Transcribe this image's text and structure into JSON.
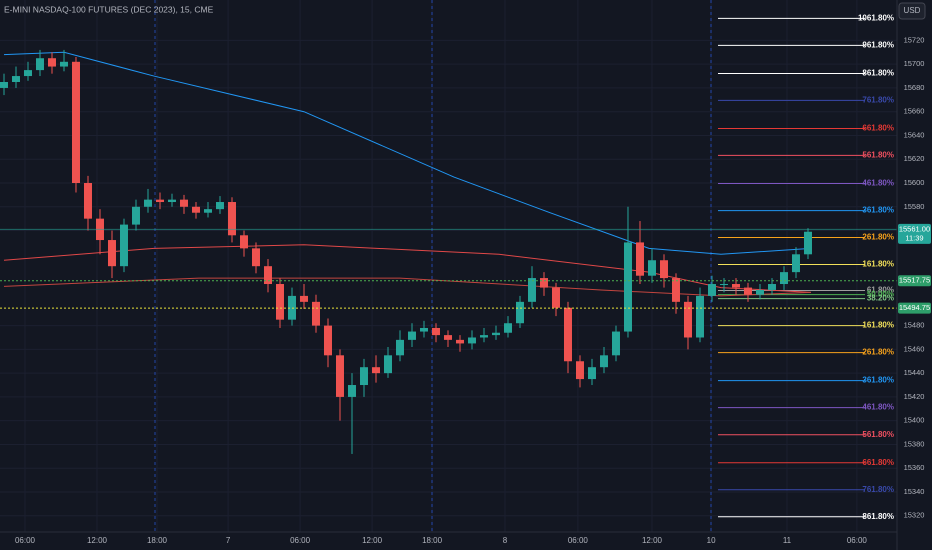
{
  "chart_data": {
    "type": "candlestick",
    "title": "E-MINI NASDAQ-100 FUTURES (DEC 2023), 15, CME",
    "currency": "USD",
    "countdown": "11:39",
    "up_color": "#26a69a",
    "down_color": "#ef5350",
    "x": [
      0,
      4,
      8,
      12,
      16,
      20,
      24,
      28,
      32,
      36,
      40,
      44,
      48,
      52,
      56,
      60,
      64,
      68,
      72,
      76,
      80,
      84,
      88,
      92,
      96,
      100,
      104,
      108,
      112,
      116,
      120,
      124,
      128,
      132,
      136,
      140,
      144,
      148,
      152,
      156,
      160,
      164,
      168,
      172,
      176,
      180,
      184,
      188,
      192,
      196,
      200,
      204,
      208,
      212,
      216,
      220,
      224,
      228,
      232,
      236,
      240,
      244,
      248,
      252,
      256,
      260,
      264,
      268
    ],
    "open": [
      15680,
      15685,
      15690,
      15695,
      15705,
      15698,
      15702,
      15600,
      15570,
      15552,
      15530,
      15565,
      15580,
      15586,
      15584,
      15586,
      15580,
      15575,
      15578,
      15584,
      15556,
      15545,
      15530,
      15515,
      15485,
      15505,
      15500,
      15480,
      15455,
      15420,
      15430,
      15445,
      15440,
      15455,
      15468,
      15475,
      15478,
      15472,
      15468,
      15465,
      15470,
      15472,
      15474,
      15482,
      15500,
      15520,
      15512,
      15495,
      15450,
      15435,
      15445,
      15455,
      15475,
      15550,
      15522,
      15535,
      15520,
      15500,
      15470,
      15505,
      15515,
      15515,
      15512,
      15506,
      15510,
      15515,
      15525,
      15540
    ],
    "high": [
      15692,
      15698,
      15702,
      15712,
      15710,
      15712,
      15706,
      15606,
      15578,
      15560,
      15570,
      15586,
      15595,
      15592,
      15591,
      15590,
      15584,
      15584,
      15589,
      15588,
      15560,
      15550,
      15536,
      15520,
      15512,
      15515,
      15506,
      15486,
      15460,
      15440,
      15452,
      15455,
      15462,
      15476,
      15482,
      15484,
      15482,
      15476,
      15472,
      15476,
      15478,
      15480,
      15488,
      15505,
      15530,
      15525,
      15516,
      15500,
      15455,
      15452,
      15462,
      15480,
      15580,
      15568,
      15545,
      15540,
      15524,
      15505,
      15512,
      15522,
      15520,
      15520,
      15516,
      15515,
      15520,
      15530,
      15546,
      15562
    ],
    "low": [
      15674,
      15680,
      15686,
      15690,
      15692,
      15694,
      15592,
      15560,
      15540,
      15520,
      15525,
      15560,
      15575,
      15578,
      15580,
      15574,
      15570,
      15571,
      15574,
      15550,
      15538,
      15524,
      15508,
      15478,
      15480,
      15494,
      15474,
      15445,
      15400,
      15372,
      15420,
      15432,
      15436,
      15450,
      15462,
      15470,
      15466,
      15462,
      15458,
      15460,
      15466,
      15468,
      15470,
      15478,
      15495,
      15505,
      15488,
      15440,
      15428,
      15430,
      15440,
      15450,
      15470,
      15515,
      15516,
      15512,
      15490,
      15460,
      15466,
      15500,
      15508,
      15506,
      15500,
      15502,
      15506,
      15510,
      15520,
      15536
    ],
    "close": [
      15685,
      15690,
      15695,
      15705,
      15698,
      15702,
      15600,
      15570,
      15552,
      15530,
      15565,
      15580,
      15586,
      15584,
      15586,
      15580,
      15575,
      15578,
      15584,
      15556,
      15545,
      15530,
      15515,
      15485,
      15505,
      15500,
      15480,
      15455,
      15420,
      15430,
      15445,
      15440,
      15455,
      15468,
      15475,
      15478,
      15472,
      15468,
      15465,
      15470,
      15472,
      15474,
      15482,
      15500,
      15520,
      15512,
      15495,
      15450,
      15435,
      15445,
      15455,
      15475,
      15550,
      15522,
      15535,
      15520,
      15500,
      15470,
      15505,
      15515,
      15515,
      15512,
      15506,
      15510,
      15515,
      15525,
      15540,
      15559
    ],
    "lines": [
      {
        "color": "#2196f3",
        "x": [
          0,
          20,
          50,
          100,
          150,
          182,
          215,
          239,
          269
        ],
        "values": [
          15708,
          15710,
          15690,
          15660,
          15605,
          15575,
          15545,
          15540,
          15545
        ]
      },
      {
        "color": "#e04848",
        "x": [
          0,
          50,
          100,
          165,
          215,
          239,
          269
        ],
        "values": [
          15535,
          15545,
          15548,
          15540,
          15525,
          15512,
          15508
        ]
      },
      {
        "color": "#c2453f",
        "x": [
          0,
          65,
          132,
          199,
          239,
          269
        ],
        "values": [
          15513,
          15520,
          15520,
          15510,
          15505,
          15508
        ]
      }
    ],
    "fib_levels": [
      {
        "label": "1061.80%",
        "value": 15738.5,
        "color": "#ffffff"
      },
      {
        "label": "961.80%",
        "value": 15715.8,
        "color": "#ffffff"
      },
      {
        "label": "861.80%",
        "value": 15692.2,
        "color": "#ffffff"
      },
      {
        "label": "761.80%",
        "value": 15669.5,
        "color": "#3949ab"
      },
      {
        "label": "661.80%",
        "value": 15645.9,
        "color": "#e53935"
      },
      {
        "label": "561.80%",
        "value": 15623.2,
        "color": "#f05060"
      },
      {
        "label": "461.80%",
        "value": 15599.6,
        "color": "#7e57c2"
      },
      {
        "label": "361.80%",
        "value": 15576.8,
        "color": "#2196f3"
      },
      {
        "label": "261.80%",
        "value": 15554.1,
        "color": "#f7a21b"
      },
      {
        "label": "161.80%",
        "value": 15531.4,
        "color": "#f2e05a"
      },
      {
        "label": "61.80%",
        "value": 15509.5,
        "color": "#9e9e9e"
      },
      {
        "label": "50.00%",
        "value": 15506.1,
        "color": "#4caf50"
      },
      {
        "label": "38.20%",
        "value": 15502.7,
        "color": "#81c784"
      },
      {
        "label": "161.80%",
        "value": 15480,
        "color": "#f2e05a"
      },
      {
        "label": "261.80%",
        "value": 15457.3,
        "color": "#f7a21b"
      },
      {
        "label": "361.80%",
        "value": 15433.7,
        "color": "#2196f3"
      },
      {
        "label": "461.80%",
        "value": 15411,
        "color": "#7e57c2"
      },
      {
        "label": "561.80%",
        "value": 15388.2,
        "color": "#f05060"
      },
      {
        "label": "661.80%",
        "value": 15364.6,
        "color": "#e53935"
      },
      {
        "label": "761.80%",
        "value": 15341.9,
        "color": "#3949ab"
      },
      {
        "label": "861.80%",
        "value": 15319.2,
        "color": "#ffffff"
      }
    ],
    "price_lines": [
      {
        "price": {
          "value": 15561,
          "label": "15561.00"
        },
        "color": "#26a69a",
        "badge_color": "#26a69a"
      },
      {
        "price": 15517.75,
        "color": "#4caf50",
        "badge_color": "#2e9e6a"
      },
      {
        "price": 15494.75,
        "color": "#e8e23a",
        "badge_color": "#2e9e6a"
      }
    ],
    "xlim": [
      -1.33,
      297.67
    ],
    "ylim": [
      15308,
      15754
    ],
    "yticks": [
      15720,
      15700,
      15680,
      15660,
      15640,
      15620,
      15600,
      15580,
      15560,
      15480,
      15460,
      15440,
      15420,
      15400,
      15380,
      15360,
      15340,
      15320
    ],
    "xticks": [
      {
        "value": 7,
        "label": "06:00"
      },
      {
        "value": 31,
        "label": "12:00"
      },
      {
        "value": 51,
        "label": "18:00"
      },
      {
        "value": 74.7,
        "label": "7"
      },
      {
        "value": 98.7,
        "label": "06:00"
      },
      {
        "value": 122.7,
        "label": "12:00"
      },
      {
        "value": 142.7,
        "label": "18:00"
      },
      {
        "value": 167,
        "label": "8"
      },
      {
        "value": 191.3,
        "label": "06:00"
      },
      {
        "value": 216,
        "label": "12:00"
      },
      {
        "value": 235.7,
        "label": "10"
      },
      {
        "value": 261,
        "label": "11"
      },
      {
        "value": 284.3,
        "label": "06:00"
      }
    ],
    "grid": true
  }
}
